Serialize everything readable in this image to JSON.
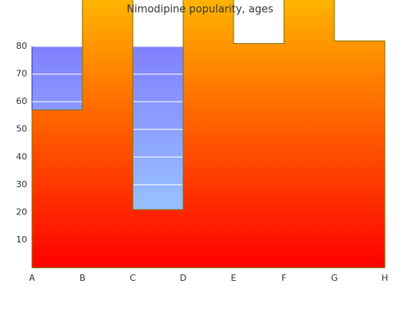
{
  "chart_data": {
    "type": "step-area",
    "title": "Nimodipine popularity, ages",
    "categories": [
      "A",
      "B",
      "C",
      "D",
      "E",
      "F",
      "G",
      "H"
    ],
    "series": [
      {
        "color": [
          "#8080ff",
          "#a0d8ff"
        ],
        "stroke": "#3030a0",
        "values": [
          80,
          80,
          80,
          80,
          80,
          80,
          80,
          80
        ]
      },
      {
        "color": [
          "#ffb400",
          "#ff0000"
        ],
        "stroke": "#807000",
        "values": [
          57,
          100,
          21,
          100,
          81,
          100,
          82,
          82
        ]
      }
    ],
    "ylim": [
      0,
      80
    ],
    "yticks": [
      10,
      20,
      30,
      40,
      50,
      60,
      70,
      80
    ],
    "grid": true
  }
}
